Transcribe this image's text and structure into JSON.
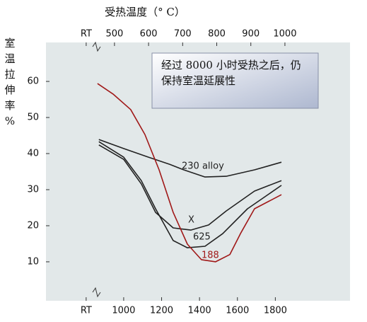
{
  "chart_data": {
    "type": "line",
    "title": "受热温度（° C）",
    "y_label": [
      "室",
      "温",
      "拉",
      "伸",
      "率",
      "%"
    ],
    "annotation": [
      "经过 8000 小时受热之后，仍",
      "保持室温延展性"
    ],
    "xlim": [
      590,
      2194
    ],
    "xticks": [
      {
        "value": 802,
        "label": "RT"
      },
      1000,
      1200,
      1400,
      1600,
      1800
    ],
    "x2lim": [
      299,
      1191
    ],
    "x2ticks": [
      {
        "value": 417,
        "label": "RT"
      },
      500,
      600,
      700,
      800,
      900,
      1000
    ],
    "ylim": [
      -0.8,
      70.8
    ],
    "yticks": [
      10,
      20,
      30,
      40,
      50,
      60
    ],
    "series": [
      {
        "name": "230 alloy",
        "color": "#222222",
        "x": [
          869,
          1000,
          1131,
          1243,
          1317,
          1429,
          1541,
          1690,
          1832
        ],
        "values": [
          43.9,
          41.4,
          39,
          37,
          35.5,
          33.5,
          33.7,
          35.5,
          37.6
        ]
      },
      {
        "name": "X",
        "color": "#222222",
        "x": [
          869,
          1000,
          1093,
          1168,
          1261,
          1336,
          1429,
          1522,
          1653,
          1832
        ],
        "values": [
          43.3,
          39,
          32.5,
          24.7,
          15.9,
          13.9,
          14.3,
          17.8,
          24.7,
          31.2
        ]
      },
      {
        "name": "625",
        "color": "#222222",
        "x": [
          869,
          1000,
          1093,
          1168,
          1261,
          1354,
          1448,
          1541,
          1690,
          1832
        ],
        "values": [
          42.4,
          38.4,
          31.6,
          23.7,
          19.4,
          18.8,
          20.2,
          24.1,
          29.6,
          32.5
        ]
      },
      {
        "name": "188",
        "color": "#a01818",
        "x": [
          862,
          944,
          1037,
          1112,
          1187,
          1261,
          1336,
          1410,
          1485,
          1560,
          1616,
          1690,
          1832
        ],
        "values": [
          59.4,
          56.5,
          52.2,
          45.3,
          35.5,
          23.7,
          14.9,
          10.6,
          10,
          12,
          17.8,
          24.7,
          28.6
        ]
      }
    ]
  }
}
